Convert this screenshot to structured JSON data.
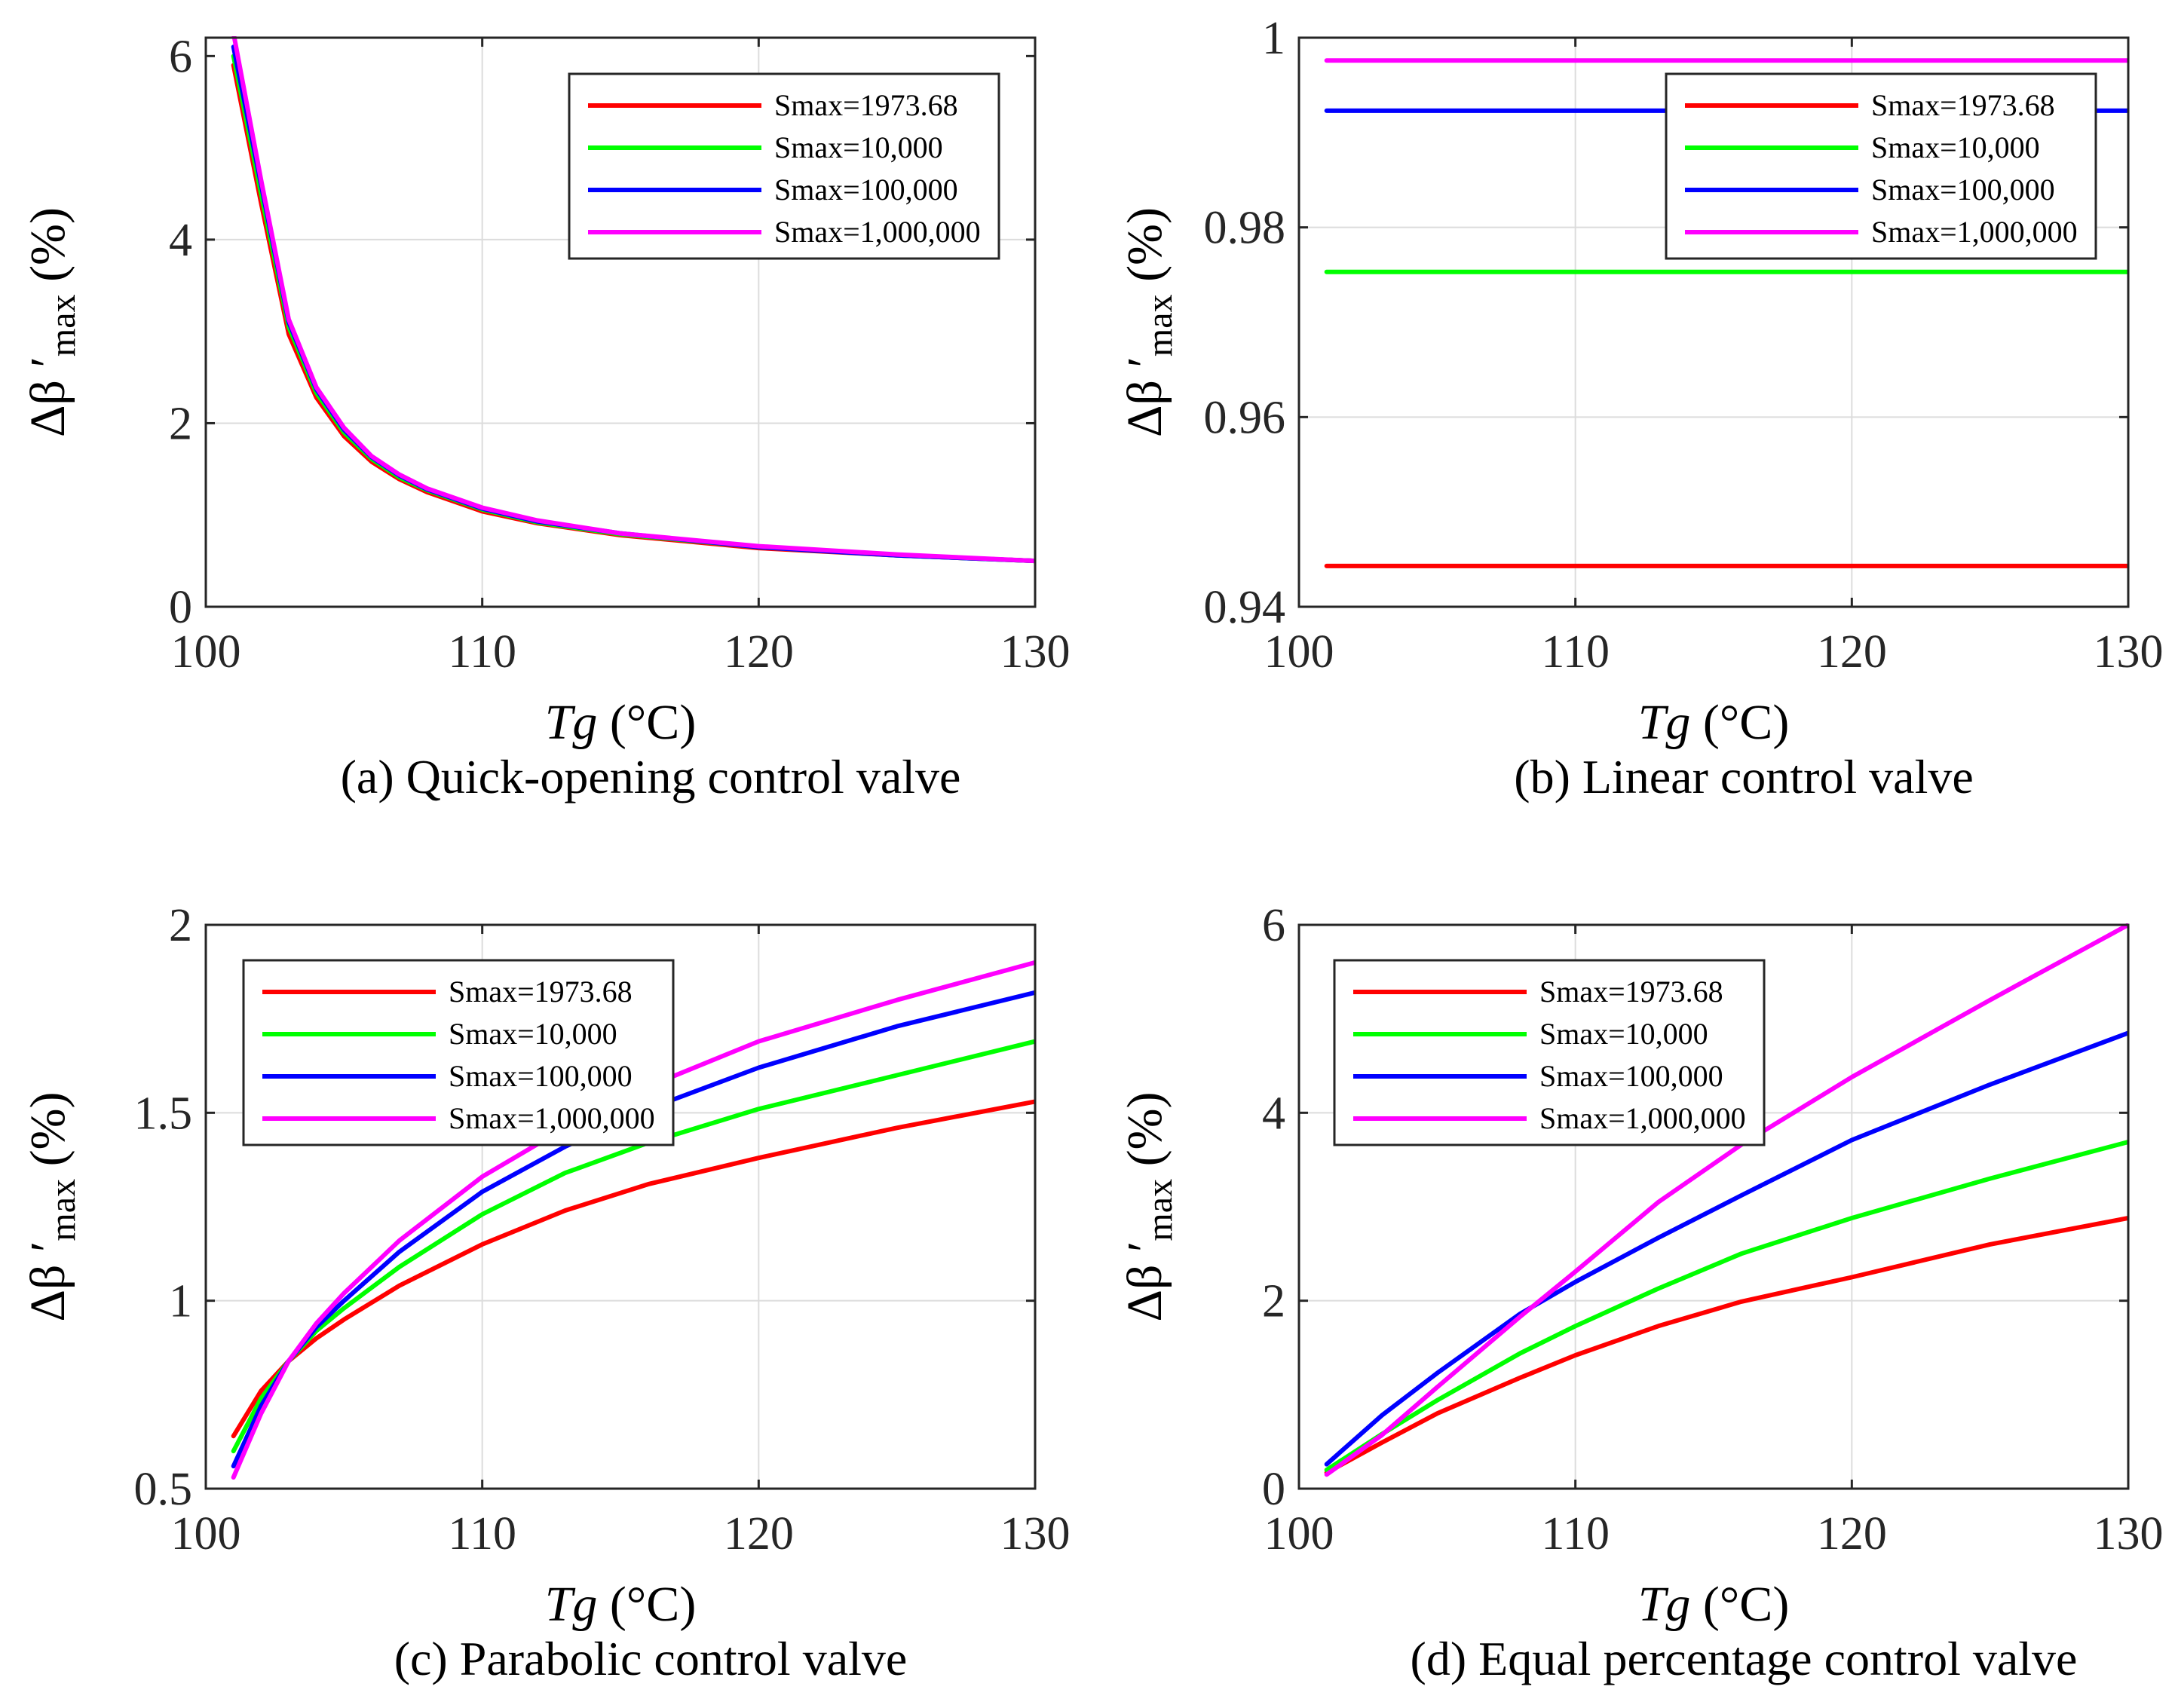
{
  "figure": {
    "xlabel": "Tg (°C)",
    "xlabel_var": "Tg",
    "xlabel_unit": " (°C)",
    "ylabel": "Δβ ′max (%)",
    "ylabel_main": "Δβ ′",
    "ylabel_sub": "max",
    "ylabel_unit": " (%)"
  },
  "colors": {
    "s1973": "#ff0000",
    "s10k": "#00ff00",
    "s100k": "#0000ff",
    "s1m": "#ff00ff"
  },
  "chart_data": [
    {
      "type": "line",
      "title": "(a) Quick-opening control valve",
      "xlabel": "Tg (°C)",
      "ylabel": "Δβ ′max (%)",
      "xlim": [
        100,
        130
      ],
      "ylim": [
        0,
        6.2
      ],
      "xticks": [
        100,
        110,
        120,
        130
      ],
      "yticks": [
        0,
        2,
        4,
        6
      ],
      "ytick_labels": [
        "0",
        "2",
        "4",
        "6"
      ],
      "legend_position": "top-right",
      "x": [
        101,
        102,
        103,
        104,
        105,
        106,
        107,
        108,
        110,
        112,
        115,
        120,
        125,
        130
      ],
      "series": [
        {
          "name": "Smax=1973.68",
          "color": "#ff0000",
          "values": [
            5.9,
            4.4,
            2.97,
            2.28,
            1.86,
            1.58,
            1.39,
            1.25,
            1.04,
            0.91,
            0.78,
            0.64,
            0.56,
            0.5
          ]
        },
        {
          "name": "Smax=10,000",
          "color": "#00ff00",
          "values": [
            6.0,
            4.5,
            3.05,
            2.33,
            1.9,
            1.61,
            1.41,
            1.27,
            1.06,
            0.92,
            0.79,
            0.65,
            0.56,
            0.5
          ]
        },
        {
          "name": "Smax=100,000",
          "color": "#0000ff",
          "values": [
            6.1,
            4.6,
            3.1,
            2.37,
            1.93,
            1.63,
            1.43,
            1.28,
            1.07,
            0.93,
            0.8,
            0.65,
            0.56,
            0.5
          ]
        },
        {
          "name": "Smax=1,000,000",
          "color": "#ff00ff",
          "values": [
            6.25,
            4.65,
            3.13,
            2.39,
            1.95,
            1.64,
            1.44,
            1.29,
            1.08,
            0.94,
            0.8,
            0.66,
            0.57,
            0.5
          ]
        }
      ]
    },
    {
      "type": "line",
      "title": "(b) Linear control valve",
      "xlabel": "Tg (°C)",
      "ylabel": "Δβ ′max (%)",
      "xlim": [
        100,
        130
      ],
      "ylim": [
        0.94,
        1.0
      ],
      "xticks": [
        100,
        110,
        120,
        130
      ],
      "yticks": [
        0.94,
        0.96,
        0.98,
        1.0
      ],
      "ytick_labels": [
        "0.94",
        "0.96",
        "0.98",
        "1"
      ],
      "legend_position": "top-right",
      "x": [
        101,
        130
      ],
      "series": [
        {
          "name": "Smax=1973.68",
          "color": "#ff0000",
          "values": [
            0.9443,
            0.9443
          ]
        },
        {
          "name": "Smax=10,000",
          "color": "#00ff00",
          "values": [
            0.9753,
            0.9753
          ]
        },
        {
          "name": "Smax=100,000",
          "color": "#0000ff",
          "values": [
            0.9923,
            0.9923
          ]
        },
        {
          "name": "Smax=1,000,000",
          "color": "#ff00ff",
          "values": [
            0.9976,
            0.9976
          ]
        }
      ]
    },
    {
      "type": "line",
      "title": "(c) Parabolic control valve",
      "xlabel": "Tg (°C)",
      "ylabel": "Δβ ′max (%)",
      "xlim": [
        100,
        130
      ],
      "ylim": [
        0.5,
        2.0
      ],
      "xticks": [
        100,
        110,
        120,
        130
      ],
      "yticks": [
        0.5,
        1.0,
        1.5,
        2.0
      ],
      "ytick_labels": [
        "0.5",
        "1",
        "1.5",
        "2"
      ],
      "legend_position": "top-left",
      "x": [
        101,
        102,
        103,
        104,
        105,
        107,
        110,
        113,
        116,
        120,
        125,
        130
      ],
      "series": [
        {
          "name": "Smax=1973.68",
          "color": "#ff0000",
          "values": [
            0.64,
            0.76,
            0.84,
            0.9,
            0.95,
            1.04,
            1.15,
            1.24,
            1.31,
            1.38,
            1.46,
            1.53
          ]
        },
        {
          "name": "Smax=10,000",
          "color": "#00ff00",
          "values": [
            0.6,
            0.74,
            0.84,
            0.92,
            0.98,
            1.09,
            1.23,
            1.34,
            1.42,
            1.51,
            1.6,
            1.69
          ]
        },
        {
          "name": "Smax=100,000",
          "color": "#0000ff",
          "values": [
            0.56,
            0.72,
            0.84,
            0.93,
            1.0,
            1.13,
            1.29,
            1.41,
            1.51,
            1.62,
            1.73,
            1.82
          ]
        },
        {
          "name": "Smax=1,000,000",
          "color": "#ff00ff",
          "values": [
            0.53,
            0.7,
            0.84,
            0.94,
            1.02,
            1.16,
            1.33,
            1.46,
            1.57,
            1.69,
            1.8,
            1.9
          ]
        }
      ]
    },
    {
      "type": "line",
      "title": "(d) Equal percentage control valve",
      "xlabel": "Tg (°C)",
      "ylabel": "Δβ ′max (%)",
      "xlim": [
        100,
        130
      ],
      "ylim": [
        0,
        6
      ],
      "xticks": [
        100,
        110,
        120,
        130
      ],
      "yticks": [
        0,
        2,
        4,
        6
      ],
      "ytick_labels": [
        "0",
        "2",
        "4",
        "6"
      ],
      "legend_position": "top-left",
      "x": [
        101,
        103,
        105,
        108,
        110,
        113,
        116,
        120,
        125,
        130
      ],
      "series": [
        {
          "name": "Smax=1973.68",
          "color": "#ff0000",
          "values": [
            0.17,
            0.49,
            0.8,
            1.18,
            1.42,
            1.73,
            1.99,
            2.25,
            2.6,
            2.88
          ]
        },
        {
          "name": "Smax=10,000",
          "color": "#00ff00",
          "values": [
            0.2,
            0.58,
            0.94,
            1.44,
            1.73,
            2.13,
            2.5,
            2.88,
            3.3,
            3.69
          ]
        },
        {
          "name": "Smax=100,000",
          "color": "#0000ff",
          "values": [
            0.26,
            0.78,
            1.23,
            1.86,
            2.2,
            2.67,
            3.12,
            3.71,
            4.3,
            4.85
          ]
        },
        {
          "name": "Smax=1,000,000",
          "color": "#ff00ff",
          "values": [
            0.15,
            0.57,
            1.08,
            1.83,
            2.31,
            3.05,
            3.66,
            4.38,
            5.2,
            6.0
          ]
        }
      ]
    }
  ]
}
